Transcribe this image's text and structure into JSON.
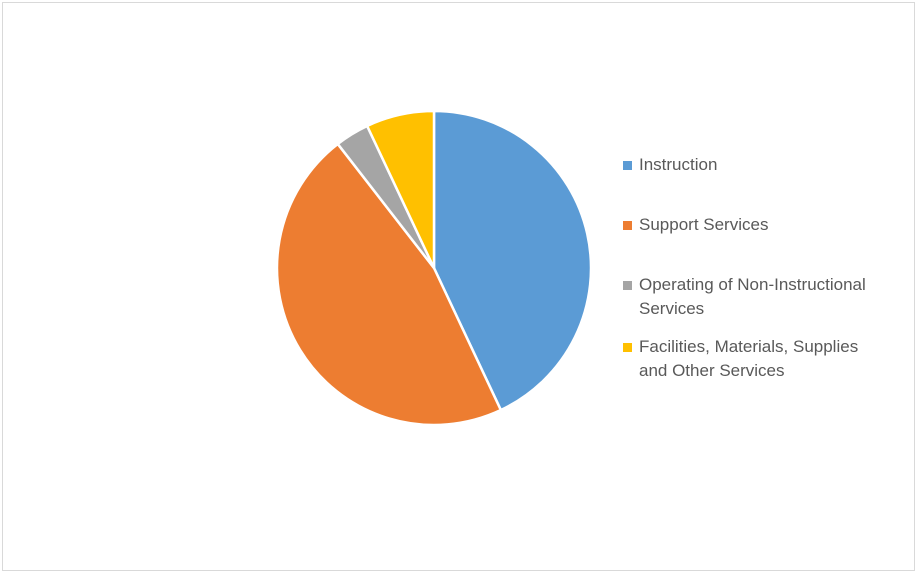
{
  "chart_data": {
    "type": "pie",
    "title": "",
    "legend_position": "right",
    "start_angle_deg": 0,
    "slices": [
      {
        "label": "Instruction",
        "value": 43.0,
        "color": "#5b9bd5"
      },
      {
        "label": "Support Services",
        "value": 46.5,
        "color": "#ed7d31"
      },
      {
        "label": "Operating of Non-Instructional Services",
        "value": 3.5,
        "color": "#a5a5a5"
      },
      {
        "label": "Facilities, Materials, Supplies and Other Services",
        "value": 7.0,
        "color": "#ffc000"
      }
    ]
  }
}
